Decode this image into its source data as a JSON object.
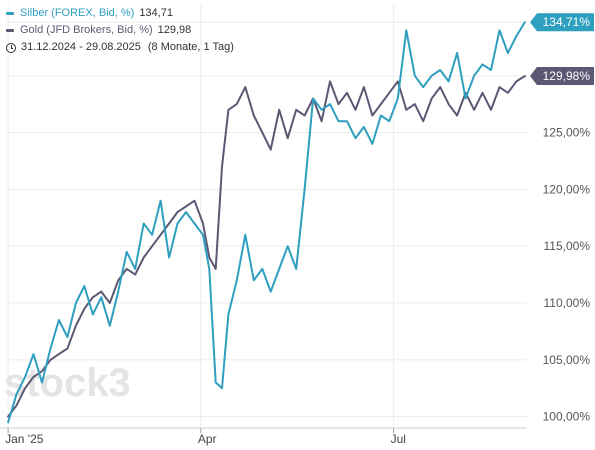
{
  "legend": {
    "silver": {
      "label": "Silber (FOREX, Bid, %)",
      "value": "134,71",
      "color": "#2f9fc0"
    },
    "gold": {
      "label": "Gold (JFD Brokers, Bid, %)",
      "value": "129,98",
      "color": "#5c5874"
    },
    "date_range": "31.12.2024 - 29.08.2025",
    "span": "(8 Monate, 1 Tag)"
  },
  "watermark": "stock3",
  "chart_data": {
    "type": "line",
    "x_ticks": [
      {
        "label": "Jan '25",
        "x": 0
      },
      {
        "label": "Apr",
        "x": 91
      },
      {
        "label": "Jul",
        "x": 182
      }
    ],
    "y_ticks": [
      {
        "label": "100,00%",
        "value": 100
      },
      {
        "label": "105,00%",
        "value": 105
      },
      {
        "label": "110,00%",
        "value": 110
      },
      {
        "label": "115,00%",
        "value": 115
      },
      {
        "label": "120,00%",
        "value": 120
      },
      {
        "label": "125,00%",
        "value": 125
      }
    ],
    "ylim": [
      99,
      136.4
    ],
    "xlim": [
      -1,
      245
    ],
    "grid": true,
    "series": [
      {
        "name": "Silber (FOREX, Bid, %)",
        "color": "#2f9fc0",
        "last_label": "134,71%",
        "x": [
          0,
          4,
          8,
          12,
          16,
          20,
          24,
          28,
          32,
          36,
          40,
          44,
          48,
          52,
          56,
          60,
          64,
          68,
          72,
          76,
          80,
          84,
          88,
          92,
          95,
          98,
          101,
          104,
          108,
          112,
          116,
          120,
          124,
          128,
          132,
          136,
          140,
          144,
          148,
          152,
          156,
          160,
          164,
          168,
          172,
          176,
          180,
          184,
          188,
          192,
          196,
          200,
          204,
          208,
          212,
          216,
          220,
          224,
          228,
          232,
          236,
          240,
          244
        ],
        "y": [
          99.5,
          102,
          103.5,
          105.5,
          103,
          106,
          108.5,
          107,
          110,
          111.5,
          109,
          110.5,
          108,
          111,
          114.5,
          113,
          117,
          116,
          119,
          114,
          117,
          118,
          117,
          116,
          113,
          103,
          102.5,
          109,
          112,
          116,
          112,
          113,
          111,
          113,
          115,
          113,
          120,
          128,
          127,
          127.5,
          126,
          126,
          124.5,
          125.5,
          124,
          126.5,
          126,
          128,
          134,
          130,
          129,
          130,
          130.5,
          129.5,
          132,
          128,
          130,
          131,
          130.5,
          134,
          132,
          133.5,
          134.71
        ]
      },
      {
        "name": "Gold (JFD Brokers, Bid, %)",
        "color": "#5c5874",
        "last_label": "129,98%",
        "x": [
          0,
          4,
          8,
          12,
          16,
          20,
          24,
          28,
          32,
          36,
          40,
          44,
          48,
          52,
          56,
          60,
          64,
          68,
          72,
          76,
          80,
          84,
          88,
          92,
          95,
          98,
          101,
          104,
          108,
          112,
          116,
          120,
          124,
          128,
          132,
          136,
          140,
          144,
          148,
          152,
          156,
          160,
          164,
          168,
          172,
          176,
          180,
          184,
          188,
          192,
          196,
          200,
          204,
          208,
          212,
          216,
          220,
          224,
          228,
          232,
          236,
          240,
          244
        ],
        "y": [
          100,
          101,
          102.5,
          103.5,
          104,
          105,
          105.5,
          106,
          108,
          109.5,
          110.5,
          111,
          110,
          112,
          113,
          112.5,
          114,
          115,
          116,
          117,
          118,
          118.5,
          119,
          117,
          114,
          113,
          122,
          127,
          127.5,
          129,
          126.5,
          125,
          123.5,
          127,
          124.5,
          127,
          126.5,
          128,
          126,
          129.5,
          127.5,
          128.5,
          127,
          129,
          126.5,
          127.5,
          128.5,
          129.5,
          127,
          127.5,
          126,
          128,
          129,
          127.5,
          126.5,
          128.5,
          127,
          128.5,
          127,
          129,
          128.5,
          129.5,
          129.98
        ]
      }
    ]
  }
}
